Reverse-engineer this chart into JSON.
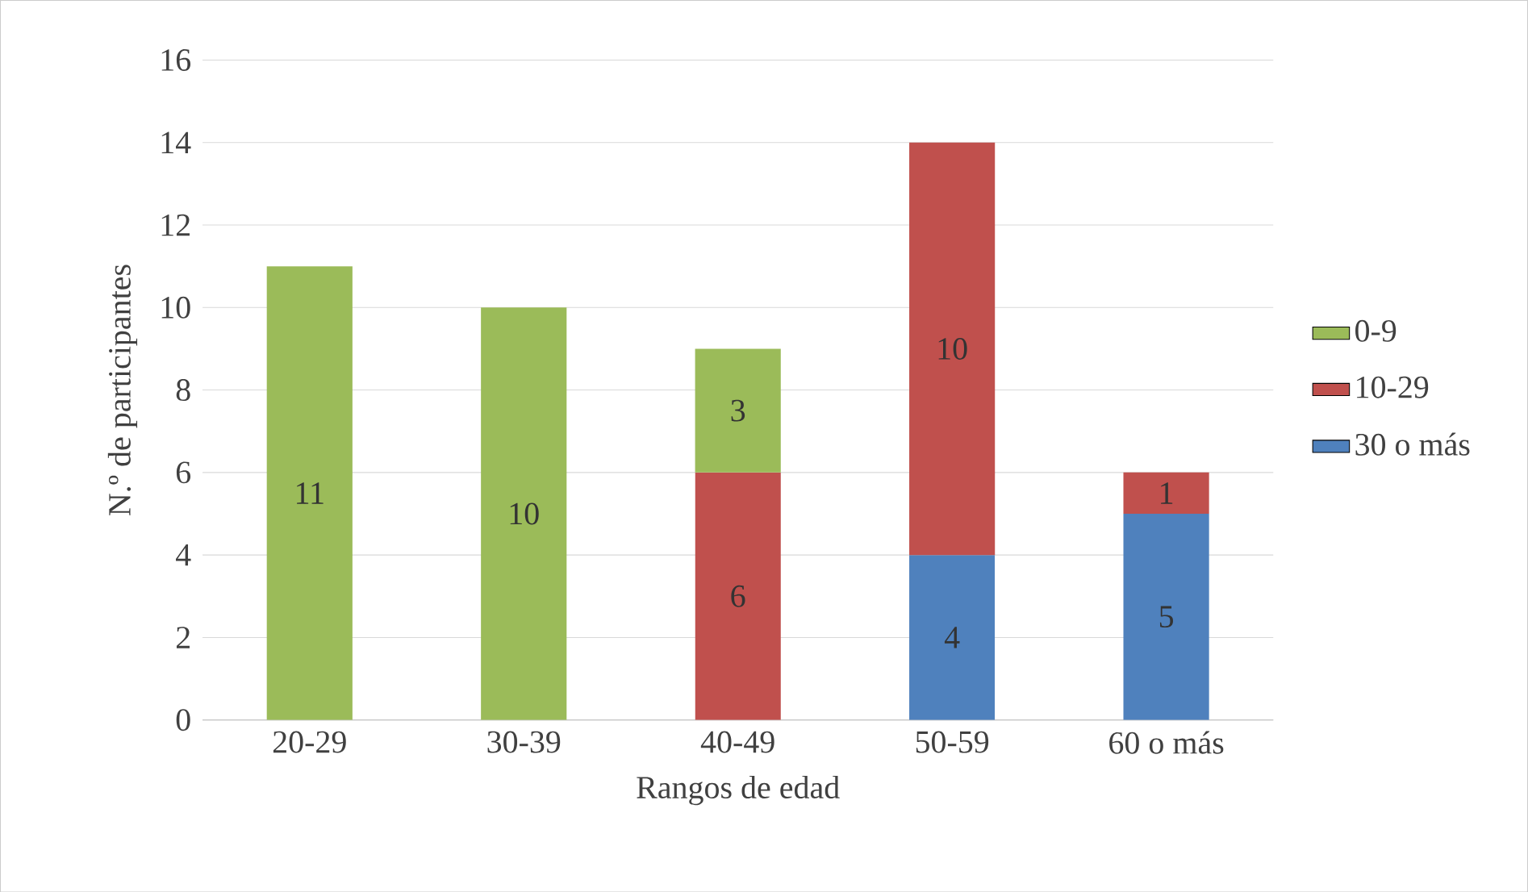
{
  "chart_data": {
    "type": "bar",
    "stacked": true,
    "xlabel": "Rangos de edad",
    "ylabel": "N.º de participantes",
    "categories": [
      "20-29",
      "30-39",
      "40-49",
      "50-59",
      "60 o más"
    ],
    "series": [
      {
        "name": "30 o más",
        "color": "#4f81bd",
        "values": [
          null,
          null,
          null,
          4,
          5
        ]
      },
      {
        "name": "10-29",
        "color": "#c0504d",
        "values": [
          null,
          null,
          6,
          10,
          1
        ]
      },
      {
        "name": "0-9",
        "color": "#9bbb59",
        "values": [
          11,
          10,
          3,
          null,
          null
        ]
      }
    ],
    "ylim": [
      0,
      16
    ],
    "yticks": [
      0,
      2,
      4,
      6,
      8,
      10,
      12,
      14,
      16
    ],
    "grid": "y",
    "legend": "right",
    "data_labels": true
  }
}
